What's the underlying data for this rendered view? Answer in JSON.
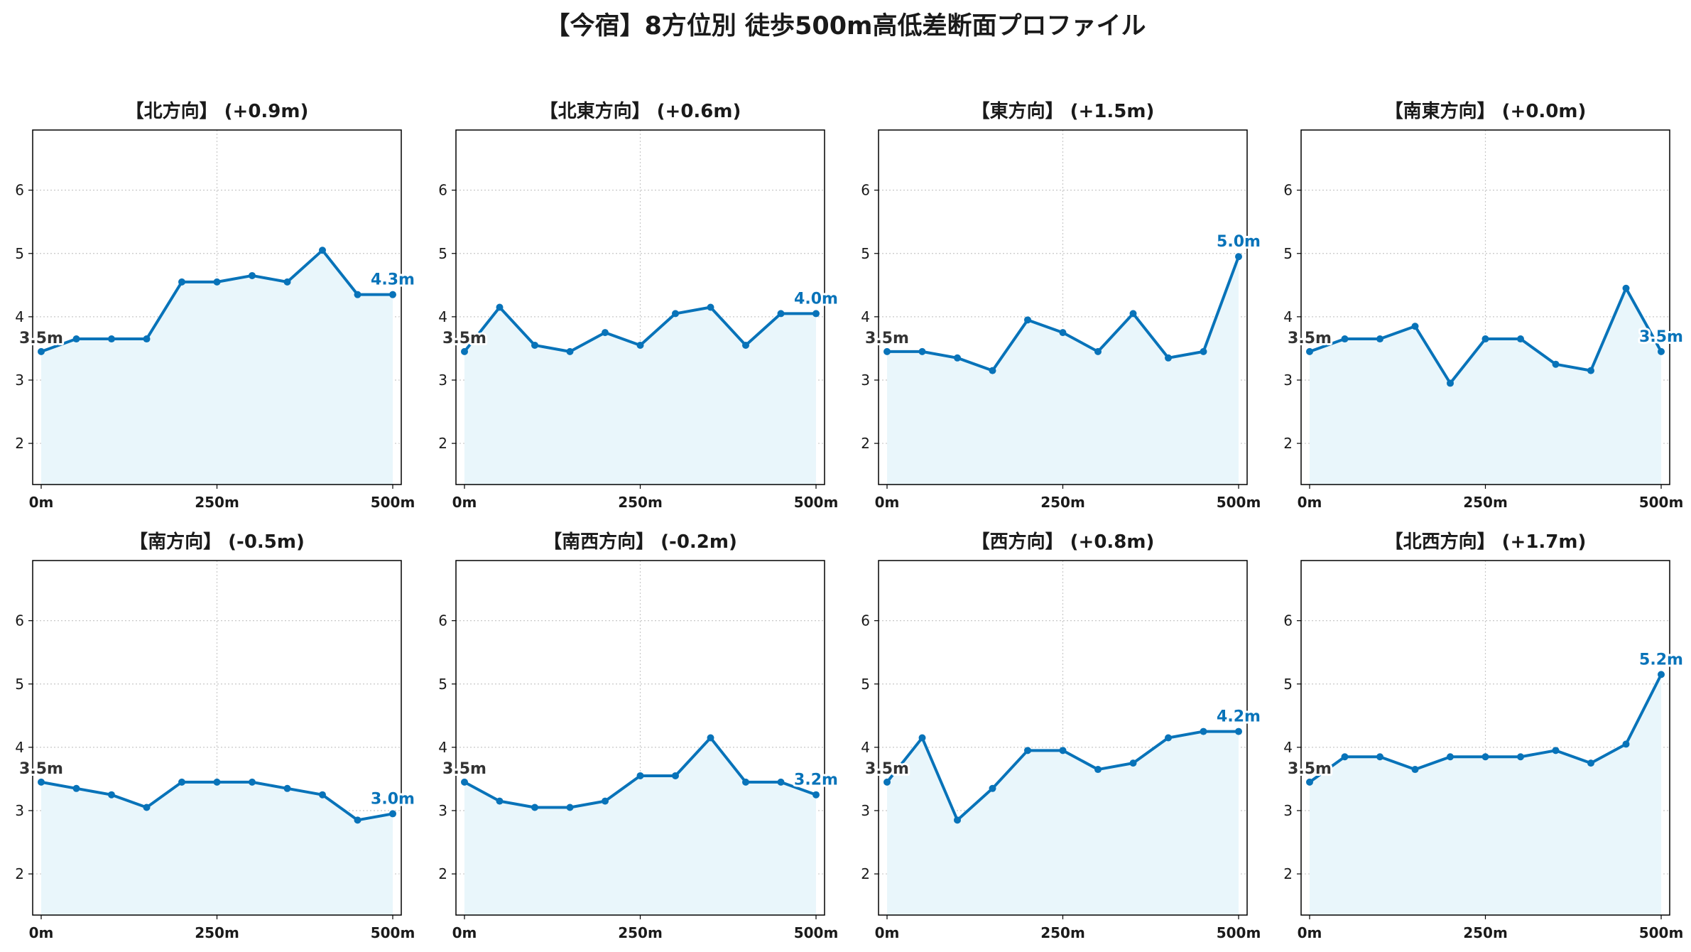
{
  "title": "【今宿】8方位別 徒歩500m高低差断面プロファイル",
  "colors": {
    "line": "#0873b9",
    "fill": "#e9f6fb",
    "grid": "#c8c8c8",
    "start_label": "#333333",
    "end_label": "#0873b9"
  },
  "chart_data": [
    {
      "type": "area",
      "title": "【北方向】 (+0.9m)",
      "x": [
        0,
        50,
        100,
        150,
        200,
        250,
        300,
        350,
        400,
        450,
        500
      ],
      "values": [
        3.45,
        3.65,
        3.65,
        3.65,
        4.55,
        4.55,
        4.65,
        4.55,
        5.05,
        4.35,
        4.35
      ],
      "xticks": [
        "0m",
        "250m",
        "500m"
      ],
      "yticks": [
        "2",
        "3",
        "4",
        "5",
        "6"
      ],
      "ylim": [
        1.35,
        6.95
      ],
      "start_label": "3.5m",
      "end_label": "4.3m",
      "grid": true
    },
    {
      "type": "area",
      "title": "【北東方向】 (+0.6m)",
      "x": [
        0,
        50,
        100,
        150,
        200,
        250,
        300,
        350,
        400,
        450,
        500
      ],
      "values": [
        3.45,
        4.15,
        3.55,
        3.45,
        3.75,
        3.55,
        4.05,
        4.15,
        3.55,
        4.05,
        4.05
      ],
      "xticks": [
        "0m",
        "250m",
        "500m"
      ],
      "yticks": [
        "2",
        "3",
        "4",
        "5",
        "6"
      ],
      "ylim": [
        1.35,
        6.95
      ],
      "start_label": "3.5m",
      "end_label": "4.0m",
      "grid": true
    },
    {
      "type": "area",
      "title": "【東方向】 (+1.5m)",
      "x": [
        0,
        50,
        100,
        150,
        200,
        250,
        300,
        350,
        400,
        450,
        500
      ],
      "values": [
        3.45,
        3.45,
        3.35,
        3.15,
        3.95,
        3.75,
        3.45,
        4.05,
        3.35,
        3.45,
        4.95
      ],
      "xticks": [
        "0m",
        "250m",
        "500m"
      ],
      "yticks": [
        "2",
        "3",
        "4",
        "5",
        "6"
      ],
      "ylim": [
        1.35,
        6.95
      ],
      "start_label": "3.5m",
      "end_label": "5.0m",
      "grid": true
    },
    {
      "type": "area",
      "title": "【南東方向】 (+0.0m)",
      "x": [
        0,
        50,
        100,
        150,
        200,
        250,
        300,
        350,
        400,
        450,
        500
      ],
      "values": [
        3.45,
        3.65,
        3.65,
        3.85,
        2.95,
        3.65,
        3.65,
        3.25,
        3.15,
        4.45,
        3.45
      ],
      "xticks": [
        "0m",
        "250m",
        "500m"
      ],
      "yticks": [
        "2",
        "3",
        "4",
        "5",
        "6"
      ],
      "ylim": [
        1.35,
        6.95
      ],
      "start_label": "3.5m",
      "end_label": "3.5m",
      "grid": true
    },
    {
      "type": "area",
      "title": "【南方向】 (-0.5m)",
      "x": [
        0,
        50,
        100,
        150,
        200,
        250,
        300,
        350,
        400,
        450,
        500
      ],
      "values": [
        3.45,
        3.35,
        3.25,
        3.05,
        3.45,
        3.45,
        3.45,
        3.35,
        3.25,
        2.85,
        2.95
      ],
      "xticks": [
        "0m",
        "250m",
        "500m"
      ],
      "yticks": [
        "2",
        "3",
        "4",
        "5",
        "6"
      ],
      "ylim": [
        1.35,
        6.95
      ],
      "start_label": "3.5m",
      "end_label": "3.0m",
      "grid": true
    },
    {
      "type": "area",
      "title": "【南西方向】 (-0.2m)",
      "x": [
        0,
        50,
        100,
        150,
        200,
        250,
        300,
        350,
        400,
        450,
        500
      ],
      "values": [
        3.45,
        3.15,
        3.05,
        3.05,
        3.15,
        3.55,
        3.55,
        4.15,
        3.45,
        3.45,
        3.25
      ],
      "xticks": [
        "0m",
        "250m",
        "500m"
      ],
      "yticks": [
        "2",
        "3",
        "4",
        "5",
        "6"
      ],
      "ylim": [
        1.35,
        6.95
      ],
      "start_label": "3.5m",
      "end_label": "3.2m",
      "grid": true
    },
    {
      "type": "area",
      "title": "【西方向】 (+0.8m)",
      "x": [
        0,
        50,
        100,
        150,
        200,
        250,
        300,
        350,
        400,
        450,
        500
      ],
      "values": [
        3.45,
        4.15,
        2.85,
        3.35,
        3.95,
        3.95,
        3.65,
        3.75,
        4.15,
        4.25,
        4.25
      ],
      "xticks": [
        "0m",
        "250m",
        "500m"
      ],
      "yticks": [
        "2",
        "3",
        "4",
        "5",
        "6"
      ],
      "ylim": [
        1.35,
        6.95
      ],
      "start_label": "3.5m",
      "end_label": "4.2m",
      "grid": true
    },
    {
      "type": "area",
      "title": "【北西方向】 (+1.7m)",
      "x": [
        0,
        50,
        100,
        150,
        200,
        250,
        300,
        350,
        400,
        450,
        500
      ],
      "values": [
        3.45,
        3.85,
        3.85,
        3.65,
        3.85,
        3.85,
        3.85,
        3.95,
        3.75,
        4.05,
        5.15
      ],
      "xticks": [
        "0m",
        "250m",
        "500m"
      ],
      "yticks": [
        "2",
        "3",
        "4",
        "5",
        "6"
      ],
      "ylim": [
        1.35,
        6.95
      ],
      "start_label": "3.5m",
      "end_label": "5.2m",
      "grid": true
    }
  ]
}
